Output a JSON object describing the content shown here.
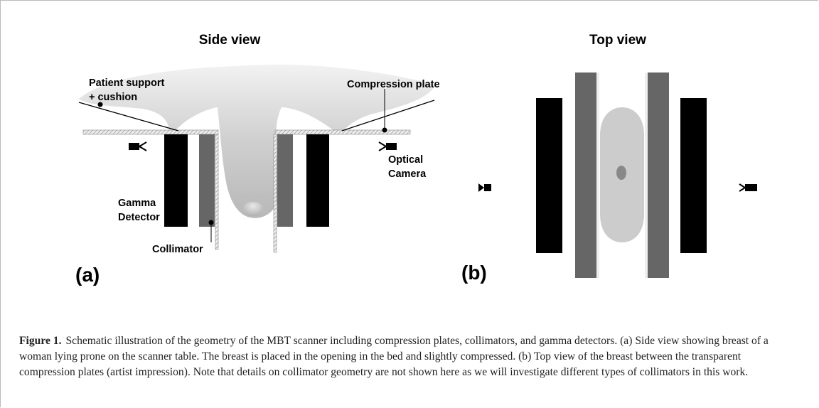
{
  "panels": [
    {
      "title": "Side view",
      "label": "(a)",
      "annotations": [
        "Patient support",
        "+ cushion",
        "Compression plate",
        "Optical",
        "Camera",
        "Gamma",
        "Detector",
        "Collimator"
      ]
    },
    {
      "title": "Top view",
      "label": "(b)"
    }
  ],
  "caption": {
    "label": "Figure 1.",
    "text": "Schematic illustration of the geometry of the MBT scanner including compression plates, collimators, and gamma detectors. (a) Side view showing breast of a woman lying prone on the scanner table. The breast is placed in the opening in the bed and slightly compressed. (b) Top view of the breast between the transparent compression plates (artist impression). Note that details on collimator geometry are not shown here as we will investigate different types of collimators in this work."
  }
}
